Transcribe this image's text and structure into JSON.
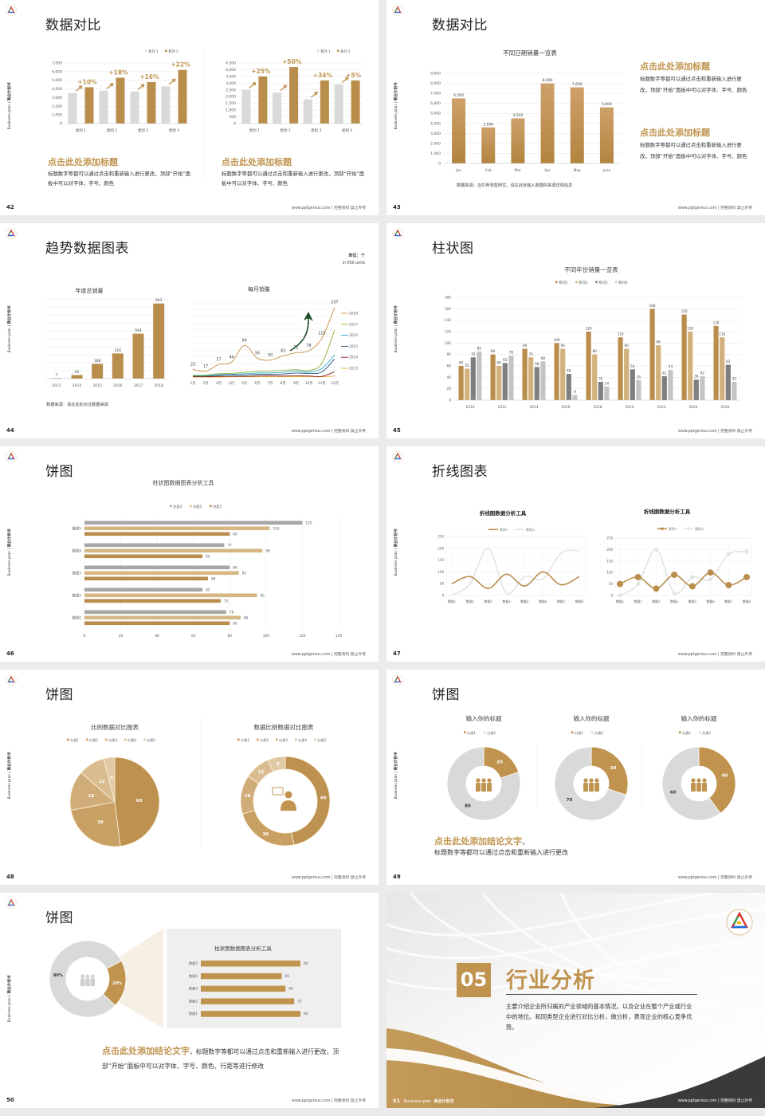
{
  "common": {
    "side_label_en": "Business plan | ",
    "side_label_cn": "商业计划书",
    "footer": "www.pptgenius.com | 完整资料 禁止外传",
    "colors": {
      "gold": "#c0944f",
      "light_gold": "#d4b07c",
      "gray": "#d9d9d9",
      "dark_gray": "#7f7f7f",
      "arrow_green": "#1e4d2b",
      "dark": "#333333"
    }
  },
  "slides": [
    {
      "page": "42",
      "title": "数据对比",
      "blocks": [
        {
          "heading": "点击此处添加标题",
          "body": "标题数字等都可以通过点击和重新输入进行更改，顶部“开始”面板中可以对字体、字号、颜色"
        },
        {
          "heading": "点击此处添加标题",
          "body": "标题数字等都可以通过点击和重新输入进行更改，顶部“开始”面板中可以对字体、字号、颜色"
        }
      ]
    },
    {
      "page": "43",
      "title": "数据对比",
      "blocks": [
        {
          "heading": "点击此处添加标题",
          "body": "标题数字等都可以通过点击和重新输入进行更改，顶部“开始”面板中可以对字体、字号、颜色"
        },
        {
          "heading": "点击此处添加标题",
          "body": "标题数字等都可以通过点击和重新输入进行更改，顶部“开始”面板中可以对字体、字号、颜色"
        }
      ],
      "source": "数据来源：迈尔希零售研究，请在此处输入数据的来源详情信息"
    },
    {
      "page": "44",
      "title": "趋势数据图表",
      "unit": "单位：个",
      "unit_en": "in 000 units",
      "source": "数据来源：请在此处标注数据来源"
    },
    {
      "page": "45",
      "title": "柱状图"
    },
    {
      "page": "46",
      "title": "饼图"
    },
    {
      "page": "47",
      "title": "折线图表"
    },
    {
      "page": "48",
      "title": "饼图"
    },
    {
      "page": "49",
      "title": "饼图",
      "conclusion": "点击此处添加结论文字",
      "conclusion_sep": "，",
      "body": "标题数字等都可以通过点击和重新输入进行更改"
    },
    {
      "page": "50",
      "title": "饼图",
      "conclusion": "点击此处添加结论文字",
      "body": "，标题数字等都可以通过点击和重新输入进行更改，顶部“开始”面板中可以对字体、字号、颜色、行距等进行修改"
    },
    {
      "page": "51",
      "number": "05",
      "title": "行业分析",
      "body": "主要介绍企业所归属的产业领域的基本情况，以及企业在整个产业或行业中的地位。和同类型企业进行对比分析，做分析，表现企业的核心竞争优势。",
      "footer_left_en": "Business plan",
      "footer_left_cn": "商业计划书"
    }
  ],
  "chart_data": [
    {
      "type": "bar",
      "categories": [
        "类别 1",
        "类别 2",
        "类别 3",
        "类别 4"
      ],
      "ylim": [
        0,
        7000
      ],
      "yticks": [
        "0",
        "1,000",
        "2,000",
        "3,000",
        "4,000",
        "5,000",
        "6,000",
        "7,000"
      ],
      "series": [
        {
          "name": "系列 1",
          "values": [
            3500,
            3800,
            3700,
            4300
          ],
          "color": "#d9d9d9"
        },
        {
          "name": "系列 2",
          "values": [
            4200,
            5300,
            4800,
            6200
          ],
          "color": "#b98e4c"
        }
      ],
      "annotations": [
        "+10%",
        "+18%",
        "+16%",
        "+22%"
      ],
      "legend": "top-right",
      "grid": true
    },
    {
      "type": "bar",
      "categories": [
        "类别 1",
        "类别 2",
        "类别 3",
        "类别 4"
      ],
      "ylim": [
        0,
        4500
      ],
      "yticks": [
        "0",
        "500",
        "1,000",
        "1,500",
        "2,000",
        "2,500",
        "3,000",
        "3,500",
        "4,000",
        "4,500"
      ],
      "series": [
        {
          "name": "系列 1",
          "values": [
            2500,
            2300,
            1800,
            2900
          ],
          "color": "#d9d9d9"
        },
        {
          "name": "系列 2",
          "values": [
            3500,
            4200,
            3200,
            3200
          ],
          "color": "#b98e4c"
        }
      ],
      "annotations": [
        "+25%",
        "+50%",
        "+34%",
        "+5%"
      ],
      "legend": "top-right",
      "grid": true
    },
    {
      "type": "bar",
      "title": "不同日期销量一览表",
      "categories": [
        "Jan",
        "Feb",
        "Mar",
        "Apr",
        "May",
        "June"
      ],
      "ylim": [
        0,
        9000
      ],
      "yticks": [
        "0",
        "1,000",
        "2,000",
        "3,000",
        "4,000",
        "5,000",
        "6,000",
        "7,000",
        "8,000",
        "9,000"
      ],
      "series": [
        {
          "values": [
            6500,
            3600,
            4500,
            8000,
            7600,
            5600
          ],
          "labels": [
            "6,500",
            "3,600",
            "4,500",
            "8,000",
            "7,600",
            "5,600"
          ],
          "color": "#c0944f"
        }
      ],
      "grid": true
    },
    {
      "type": "bar",
      "title": "年度总销量",
      "categories": [
        "2013",
        "2014",
        "2015",
        "2016",
        "2017",
        "2018"
      ],
      "ylim": [
        0,
        1000
      ],
      "series": [
        {
          "values": [
            7,
            45,
            186,
            316,
            564,
            943
          ],
          "labels": [
            "7",
            "45",
            "186",
            "316",
            "564",
            "943"
          ],
          "color": "#b98e4c"
        }
      ],
      "grid": true
    },
    {
      "type": "line",
      "title": "每月销量",
      "categories": [
        "1月",
        "2月",
        "3月",
        "4月",
        "5月",
        "6月",
        "7月",
        "8月",
        "9月",
        "10月",
        "11月",
        "12月"
      ],
      "ylim": [
        0,
        220
      ],
      "series": [
        {
          "name": "2018",
          "color": "#c8904a",
          "values": [
            23,
            17,
            37,
            44,
            94,
            56,
            50,
            63,
            72,
            78,
            115,
            207
          ],
          "labels": [
            "23",
            "17",
            "37",
            "44",
            "94",
            "56",
            "50",
            "63",
            "72",
            "78",
            "115",
            "207"
          ]
        },
        {
          "name": "2017",
          "color": "#8db33a",
          "values": [
            5,
            6,
            10,
            11,
            14,
            17,
            17,
            20,
            22,
            20,
            40,
            140
          ]
        },
        {
          "name": "2016",
          "color": "#2aa8c8",
          "values": [
            4,
            4,
            7,
            8,
            10,
            12,
            12,
            14,
            18,
            15,
            25,
            66
          ]
        },
        {
          "name": "2015",
          "color": "#1f4e79",
          "values": [
            3,
            3,
            5,
            6,
            6,
            8,
            8,
            9,
            12,
            11,
            15,
            54
          ]
        },
        {
          "name": "2014",
          "color": "#8b1a1a",
          "values": [
            1,
            1,
            2,
            2,
            2,
            3,
            4,
            3,
            4,
            3,
            2,
            16
          ]
        },
        {
          "name": "2013",
          "color": "#f0a830",
          "values": [
            0,
            0,
            0,
            1,
            1,
            1,
            1,
            1,
            1,
            1,
            1,
            3
          ]
        }
      ],
      "legend": "right",
      "grid": true
    },
    {
      "type": "bar",
      "title": "不同年份销量一览表",
      "categories": [
        "2010",
        "2012",
        "2014",
        "2016",
        "2018",
        "2020",
        "2022",
        "2024",
        "2026"
      ],
      "ylim": [
        0,
        180
      ],
      "yticks": [
        "0",
        "20",
        "40",
        "60",
        "80",
        "100",
        "120",
        "140",
        "160",
        "180"
      ],
      "series": [
        {
          "name": "系列1",
          "color": "#b98e4c",
          "values": [
            60,
            80,
            90,
            100,
            120,
            110,
            160,
            150,
            130
          ]
        },
        {
          "name": "系列2",
          "color": "#d3b17c",
          "values": [
            55,
            60,
            75,
            90,
            80,
            90,
            96,
            120,
            110
          ]
        },
        {
          "name": "系列3",
          "color": "#7f7f7f",
          "values": [
            75,
            65,
            58,
            46,
            32,
            54,
            42,
            36,
            62
          ]
        },
        {
          "name": "系列4",
          "color": "#c4c4c4",
          "values": [
            85,
            78,
            68,
            9,
            24,
            35,
            53,
            42,
            32
          ]
        }
      ],
      "legend": "top",
      "grid": true
    },
    {
      "type": "bar",
      "orientation": "horizontal",
      "title": "柱状图数据图表分析工具",
      "categories": [
        "数据5",
        "数据4",
        "数据3",
        "数据2",
        "数据1"
      ],
      "xlim": [
        0,
        140
      ],
      "xticks": [
        "0",
        "20",
        "40",
        "60",
        "80",
        "100",
        "120",
        "140"
      ],
      "series": [
        {
          "name": "分类3",
          "color": "#a6a6a6",
          "values": [
            120,
            77,
            80,
            65,
            78
          ]
        },
        {
          "name": "分类2",
          "color": "#d6b682",
          "values": [
            102,
            98,
            85,
            95,
            86
          ]
        },
        {
          "name": "分类1",
          "color": "#b98e4c",
          "values": [
            80,
            65,
            68,
            75,
            80
          ]
        }
      ],
      "legend": "top",
      "grid": true
    },
    {
      "type": "line",
      "title": "折线图数据分析工具",
      "categories": [
        "数据1",
        "数据2",
        "数据3",
        "数据4",
        "数据5",
        "数据6",
        "数据7",
        "数据8"
      ],
      "ylim": [
        0,
        250
      ],
      "yticks": [
        "0",
        "50",
        "100",
        "150",
        "200",
        "250"
      ],
      "smooth": true,
      "series": [
        {
          "name": "系列一",
          "color": "#b98e4c",
          "values": [
            50,
            80,
            30,
            90,
            40,
            100,
            45,
            80
          ]
        },
        {
          "name": "系列二",
          "color": "#e3e3e3",
          "values": [
            0,
            50,
            200,
            10,
            80,
            70,
            180,
            190
          ]
        }
      ],
      "legend": "top",
      "grid": true
    },
    {
      "type": "line",
      "title": "折线图数据分析工具",
      "categories": [
        "数据1",
        "数据2",
        "数据3",
        "数据4",
        "数据5",
        "数据6",
        "数据7",
        "数据8"
      ],
      "ylim": [
        0,
        250
      ],
      "yticks": [
        "0",
        "50",
        "100",
        "150",
        "200",
        "250"
      ],
      "smooth": true,
      "markers": true,
      "series": [
        {
          "name": "系列一",
          "color": "#b98e4c",
          "values": [
            50,
            80,
            30,
            90,
            40,
            100,
            45,
            80
          ]
        },
        {
          "name": "系列二",
          "color": "#e3e3e3",
          "values": [
            0,
            50,
            200,
            10,
            80,
            70,
            180,
            190
          ]
        }
      ],
      "legend": "top",
      "grid": true
    },
    {
      "type": "pie",
      "title": "比例数据对比图表",
      "labels": [
        "分类1",
        "分类2",
        "分类3",
        "分类4",
        "分类5"
      ],
      "values": [
        60,
        30,
        18,
        12,
        5
      ],
      "colors": [
        "#bd9150",
        "#c8a063",
        "#d0ad78",
        "#d9bc8f",
        "#e2caa6"
      ],
      "legend": "top"
    },
    {
      "type": "pie",
      "donut": true,
      "title": "数据比例数据对比图表",
      "labels": [
        "分类1",
        "分类2",
        "分类3",
        "分类4",
        "分类5"
      ],
      "values": [
        60,
        30,
        18,
        12,
        8
      ],
      "colors": [
        "#bd9150",
        "#c8a063",
        "#d0ad78",
        "#d9bc8f",
        "#e2caa6"
      ],
      "legend": "top",
      "center_icon": "person-speech-icon"
    },
    {
      "type": "pie",
      "donut": true,
      "title": "输入你的标题",
      "labels": [
        "分类1",
        "分类2"
      ],
      "values": [
        20,
        80
      ],
      "colors": [
        "#c0944f",
        "#d9d9d9"
      ],
      "legend": "top",
      "center_icon": "team-icon"
    },
    {
      "type": "pie",
      "donut": true,
      "title": "输入你的标题",
      "labels": [
        "分类1",
        "分类2"
      ],
      "values": [
        30,
        70
      ],
      "colors": [
        "#c0944f",
        "#d9d9d9"
      ],
      "legend": "top",
      "center_icon": "team-icon"
    },
    {
      "type": "pie",
      "donut": true,
      "title": "输入你的标题",
      "labels": [
        "分类1",
        "分类2"
      ],
      "values": [
        40,
        60
      ],
      "colors": [
        "#c0944f",
        "#d9d9d9"
      ],
      "legend": "top",
      "center_icon": "team-icon"
    },
    {
      "type": "pie",
      "donut": true,
      "values": [
        80,
        20
      ],
      "value_labels": [
        "80%",
        "20%"
      ],
      "colors": [
        "#d9d9d9",
        "#c0944f"
      ],
      "center_icon": "teamwork-icon"
    },
    {
      "type": "bar",
      "orientation": "horizontal",
      "title": "柱状图数据图表分析工具",
      "categories": [
        "数据5",
        "数据4",
        "数据3",
        "数据2",
        "数据1"
      ],
      "series": [
        {
          "values": [
            80,
            65,
            68,
            75,
            80
          ],
          "color": "#c0944f"
        }
      ]
    }
  ]
}
